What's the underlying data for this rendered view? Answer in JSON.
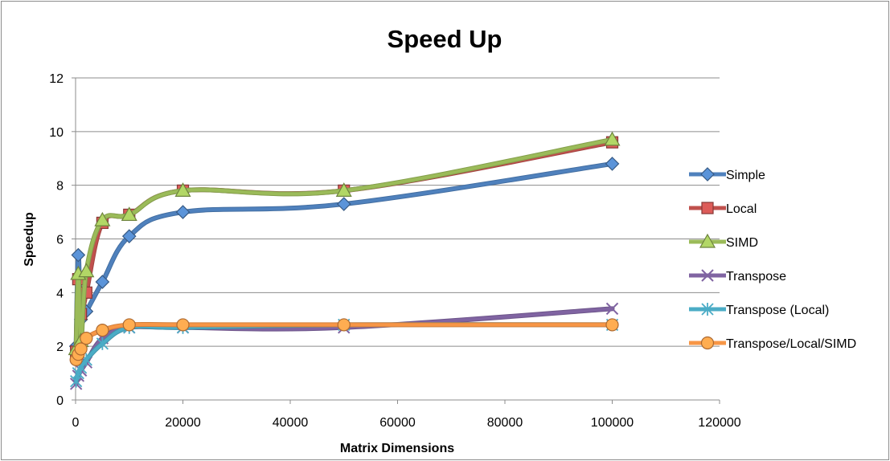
{
  "chart_data": {
    "type": "line",
    "title": "Speed Up",
    "xlabel": "Matrix Dimensions",
    "ylabel": "Speedup",
    "xlim": [
      0,
      120000
    ],
    "ylim": [
      0,
      12
    ],
    "xticks": [
      0,
      20000,
      40000,
      60000,
      80000,
      100000,
      120000
    ],
    "yticks": [
      0,
      2,
      4,
      6,
      8,
      10,
      12
    ],
    "grid": "horizontal",
    "legend": "right",
    "x": [
      100,
      500,
      1000,
      2000,
      5000,
      10000,
      20000,
      50000,
      100000
    ],
    "series": [
      {
        "name": "Simple",
        "color": "#4f81bd",
        "marker": "diamond",
        "values": [
          2.0,
          5.4,
          3.0,
          3.3,
          4.4,
          6.1,
          7.0,
          7.3,
          8.8
        ]
      },
      {
        "name": "Local",
        "color": "#c0504d",
        "marker": "square",
        "values": [
          1.8,
          4.5,
          3.2,
          4.0,
          6.6,
          6.9,
          7.8,
          7.8,
          9.6
        ]
      },
      {
        "name": "SIMD",
        "color": "#9bbb59",
        "marker": "triangle",
        "values": [
          1.9,
          4.7,
          2.2,
          4.8,
          6.7,
          6.9,
          7.8,
          7.8,
          9.7
        ]
      },
      {
        "name": "Transpose",
        "color": "#8064a2",
        "marker": "x",
        "values": [
          0.6,
          0.9,
          1.1,
          1.4,
          2.3,
          2.7,
          2.7,
          2.7,
          3.4
        ]
      },
      {
        "name": "Transpose (Local)",
        "color": "#4bacc6",
        "marker": "star",
        "values": [
          0.7,
          1.0,
          1.2,
          1.5,
          2.1,
          2.7,
          2.7,
          2.8,
          2.8
        ]
      },
      {
        "name": "Transpose/Local/SIMD",
        "color": "#f79646",
        "marker": "circle",
        "values": [
          1.5,
          1.7,
          1.9,
          2.3,
          2.6,
          2.8,
          2.8,
          2.8,
          2.8
        ]
      }
    ]
  }
}
